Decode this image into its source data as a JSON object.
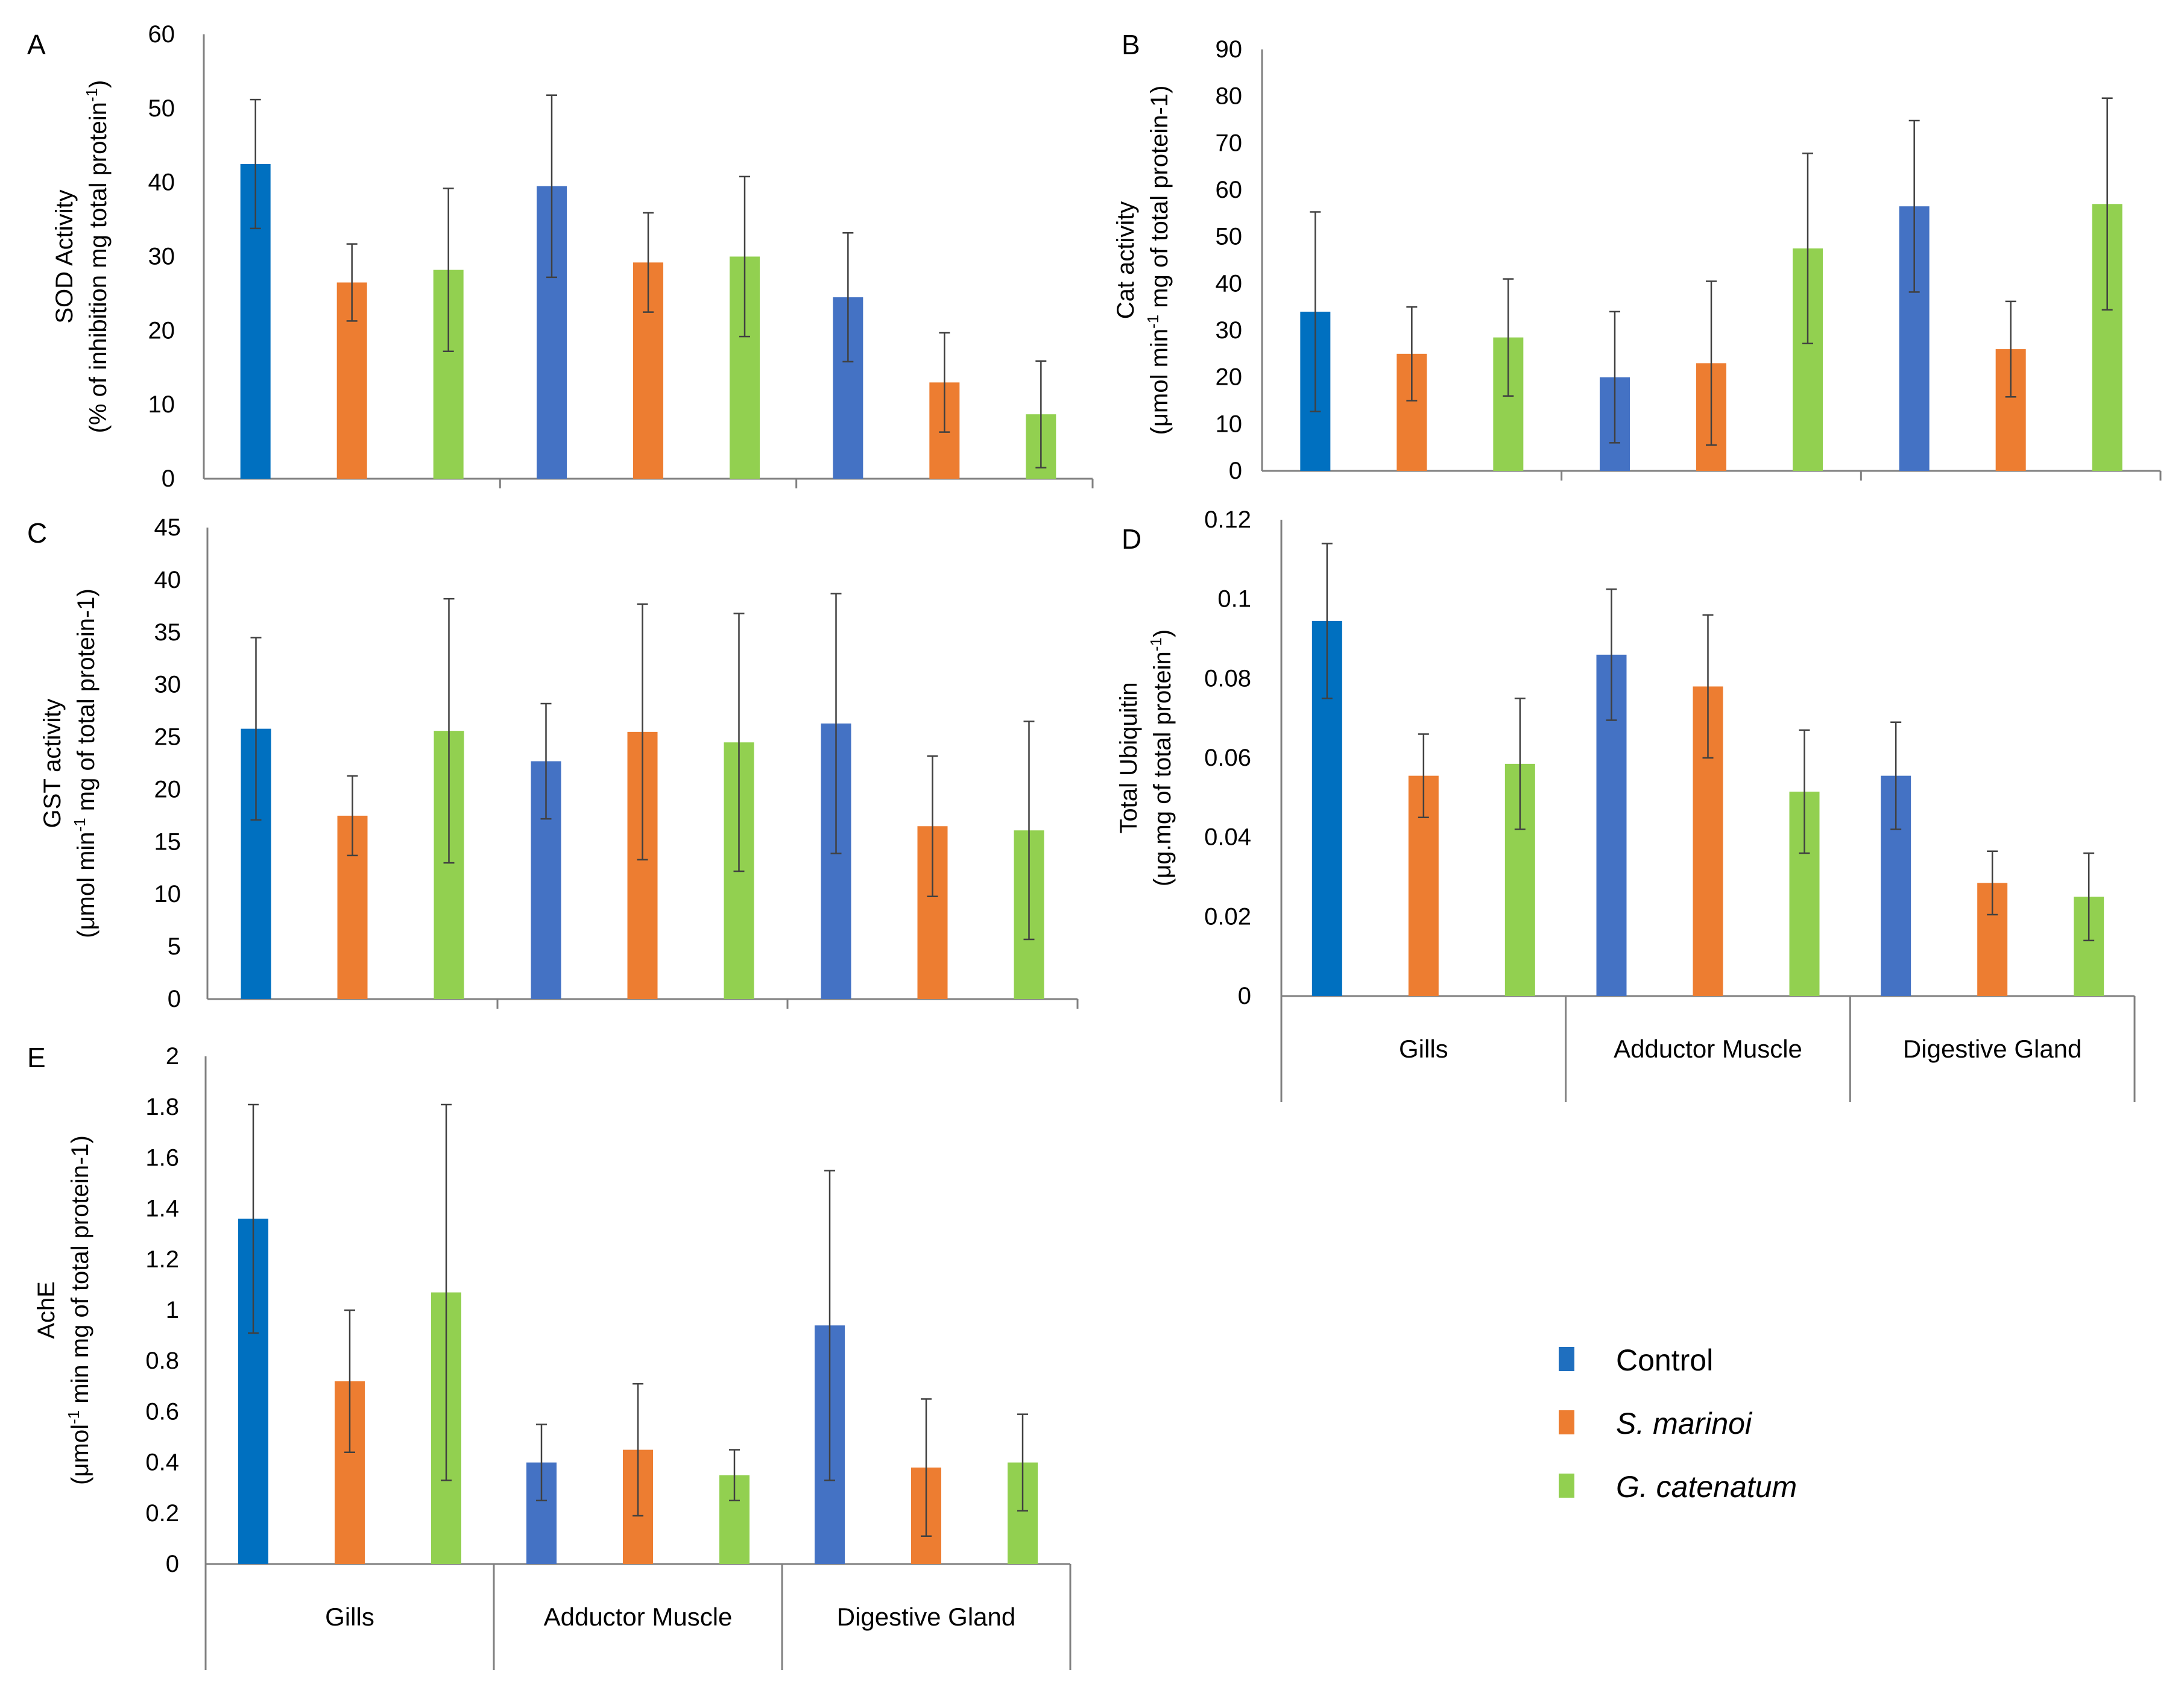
{
  "figure": {
    "legend": [
      {
        "label": "Control",
        "color": "#1F6FBF",
        "italic": false
      },
      {
        "label": "S. marinoi",
        "color": "#ED7D31",
        "italic": true
      },
      {
        "label": "G. catenatum",
        "color": "#92D050",
        "italic": true
      }
    ]
  },
  "chart_data": [
    {
      "panel": "A",
      "type": "bar",
      "ylabel": [
        "SOD Activity",
        "(% of inhibition mg total protein-1)"
      ],
      "ylim": [
        0,
        60
      ],
      "yticks": [
        0,
        10,
        20,
        30,
        40,
        50,
        60
      ],
      "categories": [
        "Gills",
        "Adductor Muscle",
        "Digestive Gland"
      ],
      "show_category_labels": false,
      "series": [
        {
          "name": "Control",
          "values": [
            42.5,
            39.5,
            24.5
          ],
          "errors": [
            8.7,
            12.3,
            8.7
          ],
          "colors": [
            "#0070C0",
            "#4472C4",
            "#4472C4"
          ]
        },
        {
          "name": "S. marinoi",
          "values": [
            26.5,
            29.2,
            13.0
          ],
          "errors": [
            5.2,
            6.7,
            6.7
          ],
          "colors": [
            "#ED7D31",
            "#ED7D31",
            "#ED7D31"
          ]
        },
        {
          "name": "G. catenatum",
          "values": [
            28.2,
            30.0,
            8.7
          ],
          "errors": [
            11.0,
            10.8,
            7.2
          ],
          "colors": [
            "#92D050",
            "#92D050",
            "#92D050"
          ]
        }
      ]
    },
    {
      "panel": "B",
      "type": "bar",
      "ylabel": [
        "Cat activity",
        "(μmol min-1 mg of total protein-1)"
      ],
      "ylim": [
        0,
        90
      ],
      "yticks": [
        0,
        10,
        20,
        30,
        40,
        50,
        60,
        70,
        80,
        90
      ],
      "categories": [
        "Gills",
        "Adductor Muscle",
        "Digestive Gland"
      ],
      "show_category_labels": false,
      "series": [
        {
          "name": "Control",
          "values": [
            34.0,
            20.0,
            56.5
          ],
          "errors": [
            21.3,
            14.0,
            18.3
          ],
          "colors": [
            "#0070C0",
            "#4472C4",
            "#4472C4"
          ]
        },
        {
          "name": "S. marinoi",
          "values": [
            25.0,
            23.0,
            26.0
          ],
          "errors": [
            10.0,
            17.5,
            10.2
          ],
          "colors": [
            "#ED7D31",
            "#ED7D31",
            "#ED7D31"
          ]
        },
        {
          "name": "G. catenatum",
          "values": [
            28.5,
            47.5,
            57.0
          ],
          "errors": [
            12.5,
            20.3,
            22.6
          ],
          "colors": [
            "#92D050",
            "#92D050",
            "#92D050"
          ]
        }
      ]
    },
    {
      "panel": "C",
      "type": "bar",
      "ylabel": [
        "GST activity",
        "(μmol min-1 mg of total protein-1)"
      ],
      "ylim": [
        0,
        45
      ],
      "yticks": [
        0,
        5,
        10,
        15,
        20,
        25,
        30,
        35,
        40,
        45
      ],
      "categories": [
        "Gills",
        "Adductor Muscle",
        "Digestive Gland"
      ],
      "show_category_labels": false,
      "series": [
        {
          "name": "Control",
          "values": [
            25.8,
            22.7,
            26.3
          ],
          "errors": [
            8.7,
            5.5,
            12.4
          ],
          "colors": [
            "#0070C0",
            "#4472C4",
            "#4472C4"
          ]
        },
        {
          "name": "S. marinoi",
          "values": [
            17.5,
            25.5,
            16.5
          ],
          "errors": [
            3.8,
            12.2,
            6.7
          ],
          "colors": [
            "#ED7D31",
            "#ED7D31",
            "#ED7D31"
          ]
        },
        {
          "name": "G. catenatum",
          "values": [
            25.6,
            24.5,
            16.1
          ],
          "errors": [
            12.6,
            12.3,
            10.4
          ],
          "colors": [
            "#92D050",
            "#92D050",
            "#92D050"
          ]
        }
      ]
    },
    {
      "panel": "D",
      "type": "bar",
      "ylabel": [
        "Total Ubiquitin",
        "(μg.mg of total protein-1)"
      ],
      "ylim": [
        0,
        0.12
      ],
      "yticks": [
        0,
        0.02,
        0.04,
        0.06,
        0.08,
        0.1,
        0.12
      ],
      "categories": [
        "Gills",
        "Adductor Muscle",
        "Digestive Gland"
      ],
      "show_category_labels": true,
      "series": [
        {
          "name": "Control",
          "values": [
            0.0945,
            0.086,
            0.0555
          ],
          "errors": [
            0.0195,
            0.0165,
            0.0135
          ],
          "colors": [
            "#0070C0",
            "#4472C4",
            "#4472C4"
          ]
        },
        {
          "name": "S. marinoi",
          "values": [
            0.0555,
            0.078,
            0.0285
          ],
          "errors": [
            0.0105,
            0.018,
            0.008
          ],
          "colors": [
            "#ED7D31",
            "#ED7D31",
            "#ED7D31"
          ]
        },
        {
          "name": "G. catenatum",
          "values": [
            0.0585,
            0.0515,
            0.025
          ],
          "errors": [
            0.0165,
            0.0155,
            0.011
          ],
          "colors": [
            "#92D050",
            "#92D050",
            "#92D050"
          ]
        }
      ]
    },
    {
      "panel": "E",
      "type": "bar",
      "ylabel": [
        "AchE",
        "(μmol-1 min mg of total protein-1)"
      ],
      "ylim": [
        0,
        2
      ],
      "yticks": [
        0,
        0.2,
        0.4,
        0.6,
        0.8,
        1,
        1.2,
        1.4,
        1.6,
        1.8,
        2
      ],
      "categories": [
        "Gills",
        "Adductor Muscle",
        "Digestive Gland"
      ],
      "show_category_labels": true,
      "series": [
        {
          "name": "Control",
          "values": [
            1.36,
            0.4,
            0.94
          ],
          "errors": [
            0.45,
            0.15,
            0.61
          ],
          "colors": [
            "#0070C0",
            "#4472C4",
            "#4472C4"
          ]
        },
        {
          "name": "S. marinoi",
          "values": [
            0.72,
            0.45,
            0.38
          ],
          "errors": [
            0.28,
            0.26,
            0.27
          ],
          "colors": [
            "#ED7D31",
            "#ED7D31",
            "#ED7D31"
          ]
        },
        {
          "name": "G. catenatum",
          "values": [
            1.07,
            0.35,
            0.4
          ],
          "errors": [
            0.74,
            0.1,
            0.19
          ],
          "colors": [
            "#92D050",
            "#92D050",
            "#92D050"
          ]
        }
      ]
    }
  ]
}
